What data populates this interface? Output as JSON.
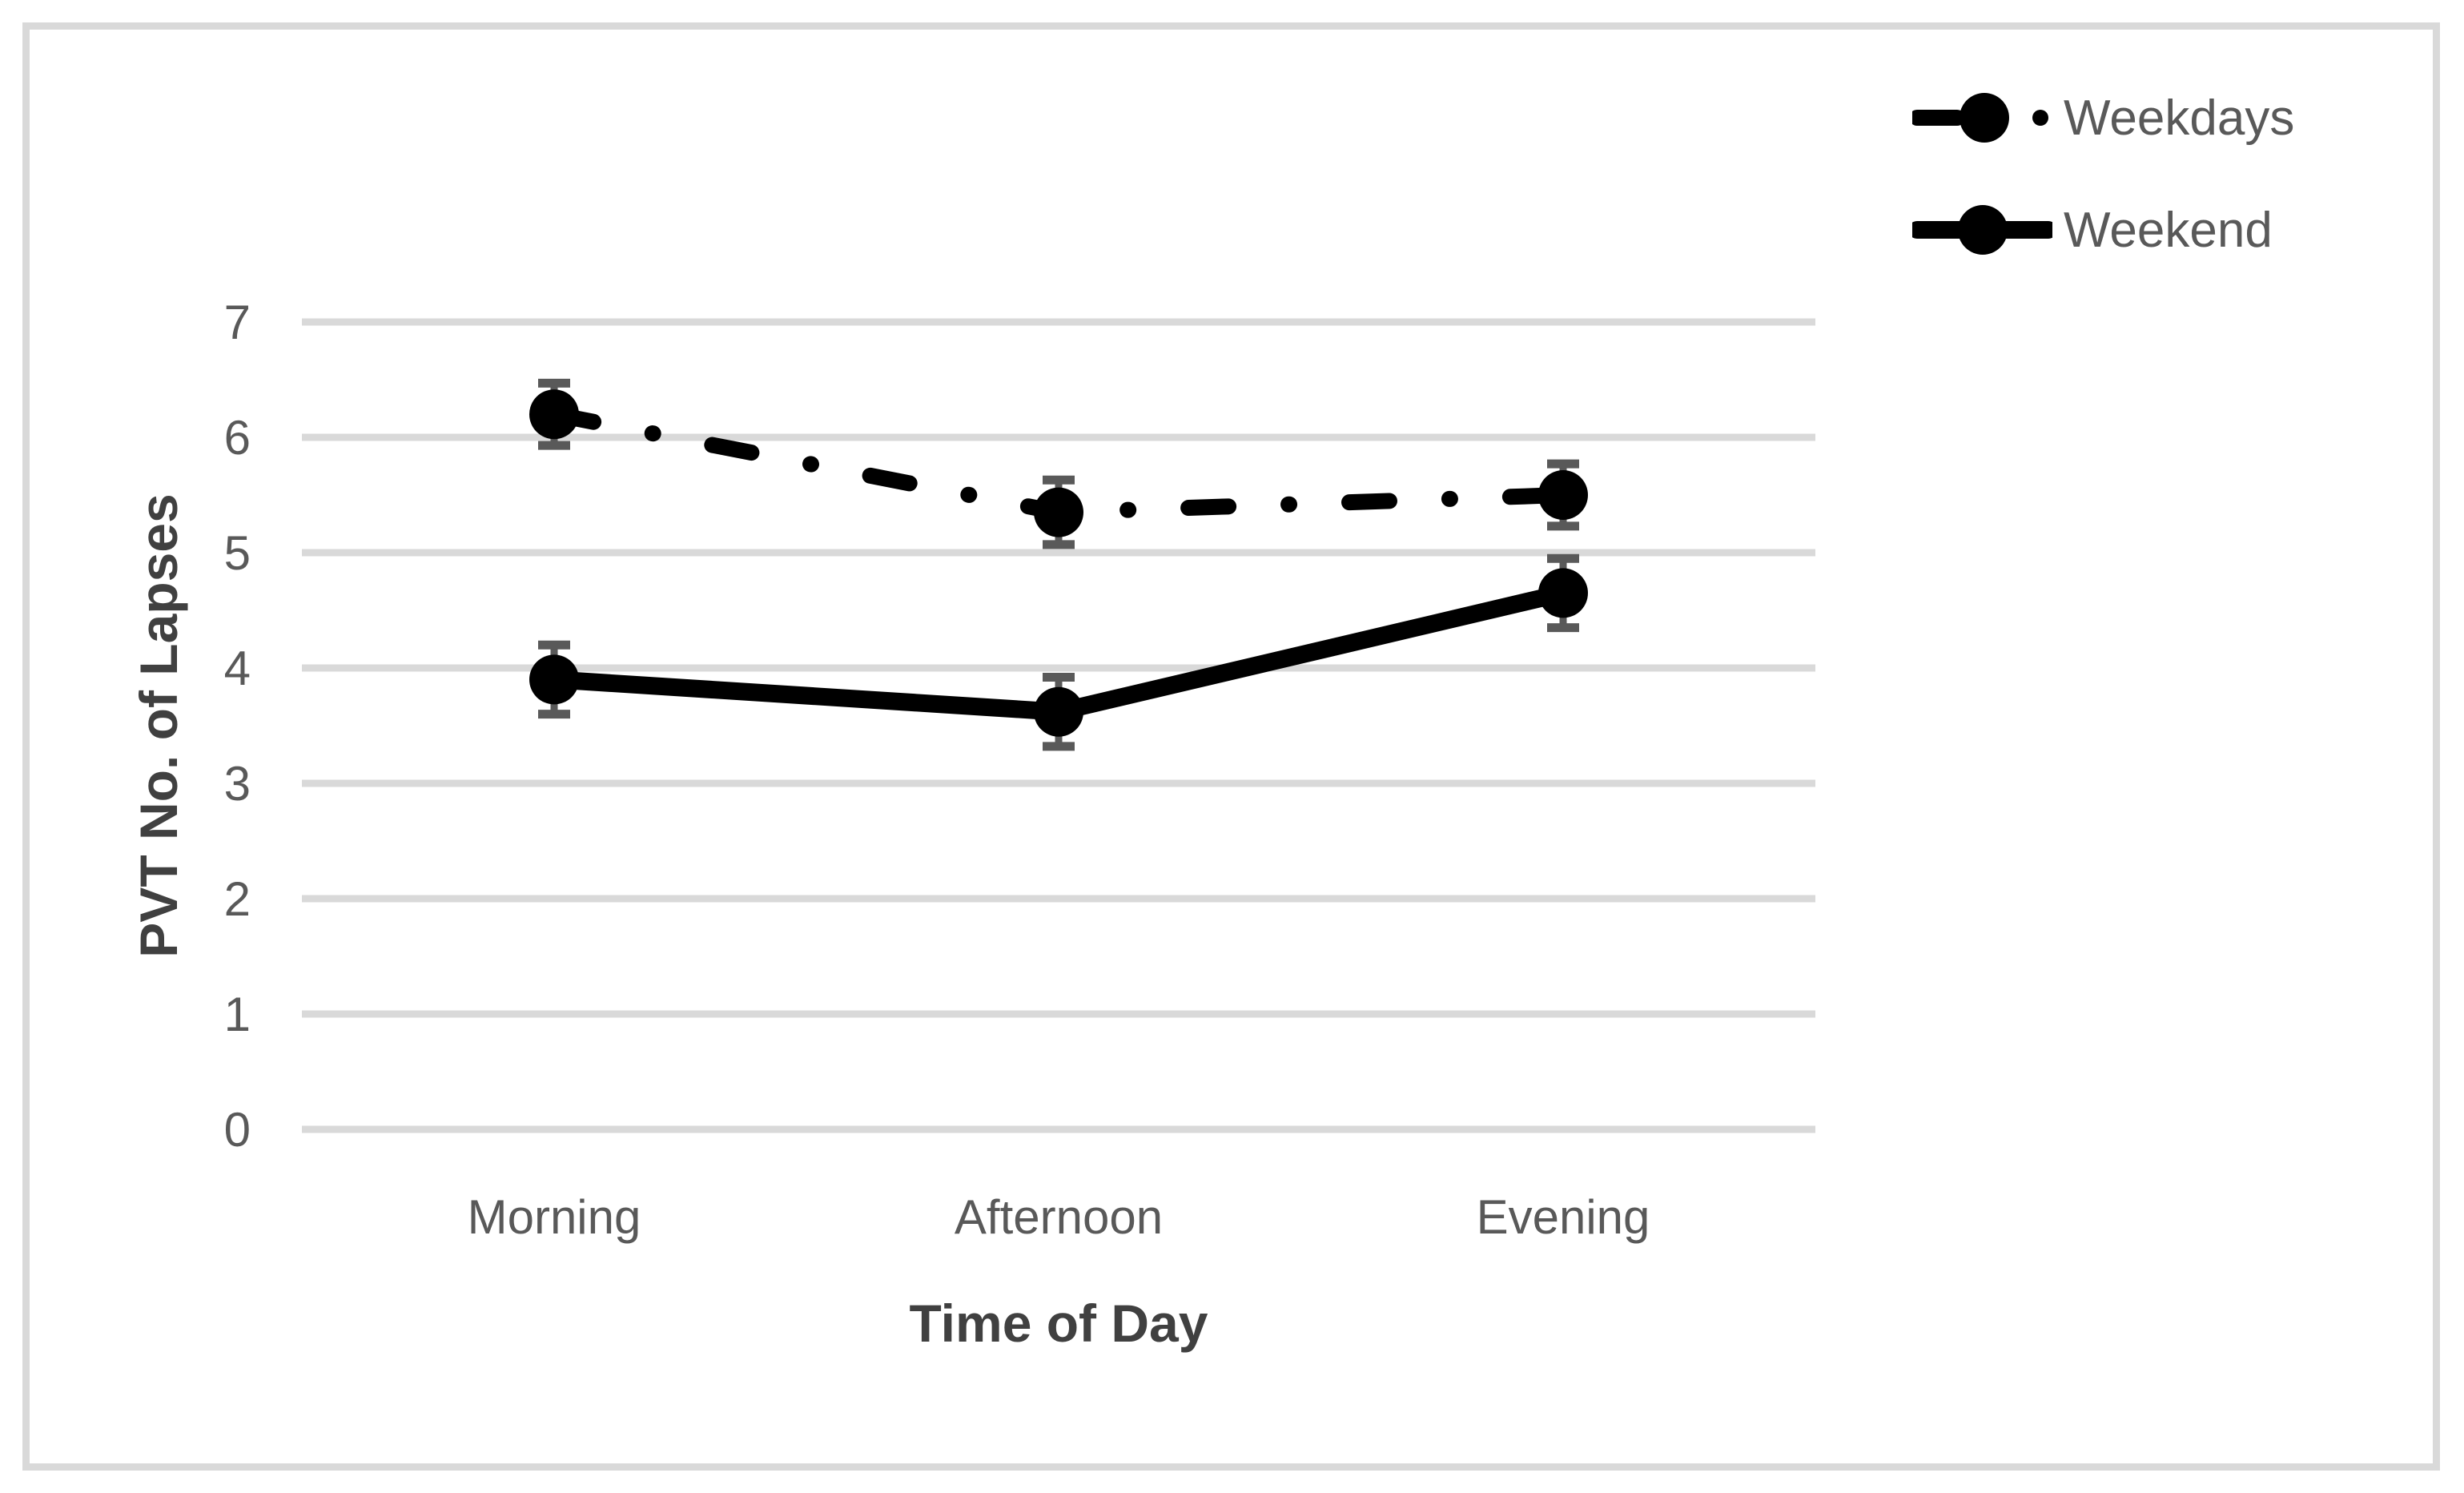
{
  "chart_data": {
    "type": "line",
    "title": "",
    "xlabel": "Time of Day",
    "ylabel": "PVT No. of Lapses",
    "categories": [
      "Morning",
      "Afternoon",
      "Evening"
    ],
    "series": [
      {
        "name": "Weekdays",
        "style": "dashdot",
        "values": [
          6.2,
          5.35,
          5.5
        ],
        "errors": [
          0.27,
          0.28,
          0.27
        ]
      },
      {
        "name": "Weekend",
        "style": "solid",
        "values": [
          3.9,
          3.62,
          4.65
        ],
        "errors": [
          0.3,
          0.3,
          0.3
        ]
      }
    ],
    "ylim": [
      0,
      7
    ],
    "yticks": [
      0,
      1,
      2,
      3,
      4,
      5,
      6,
      7
    ],
    "grid": "horizontal-only",
    "legend_position": "top-right",
    "colors": {
      "line": "#000000",
      "marker": "#000000",
      "error_bar": "#595959",
      "gridline": "#d9d9d9",
      "tick_text": "#595959",
      "title_text": "#404040",
      "border": "#d9d9d9",
      "background": "#ffffff"
    }
  }
}
